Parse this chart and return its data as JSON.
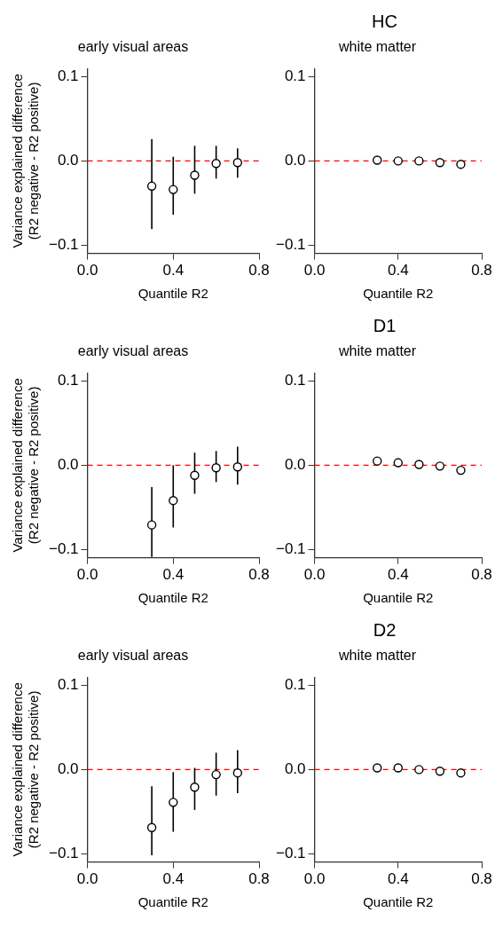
{
  "chart_data": [
    {
      "type": "scatter",
      "subtitle": "early visual areas",
      "xlabel": "Quantile R2",
      "ylabel": "Variance explained difference\n(R2 negative - R2 positive)",
      "xlim": [
        0,
        0.8
      ],
      "ylim": [
        -0.11,
        0.11
      ],
      "xticks": [
        {
          "value": 0,
          "label": "0.0"
        },
        {
          "value": 0.4,
          "label": "0.4"
        },
        {
          "value": 0.8,
          "label": "0.8"
        }
      ],
      "yticks": [
        {
          "value": -0.1,
          "label": "−0.1"
        },
        {
          "value": 0,
          "label": "0.0"
        },
        {
          "value": 0.1,
          "label": "0.1"
        }
      ],
      "grid": false,
      "marker": "circle",
      "ref_lines": [
        {
          "axis": "y",
          "value": 0,
          "color": "#ff0000",
          "line_style": "dashed"
        }
      ],
      "series": [
        {
          "color": "#000000",
          "x": [
            0.3,
            0.4,
            0.5,
            0.6,
            0.7
          ],
          "values": [
            -0.03,
            -0.034,
            -0.017,
            -0.003,
            -0.002
          ],
          "errors": [
            [
              -0.081,
              0.026
            ],
            [
              -0.064,
              0.005
            ],
            [
              -0.039,
              0.018
            ],
            [
              -0.021,
              0.018
            ],
            [
              -0.02,
              0.015
            ]
          ]
        }
      ]
    },
    {
      "type": "scatter",
      "subtitle": "white matter",
      "xlabel": "Quantile R2",
      "xlim": [
        0,
        0.8
      ],
      "ylim": [
        -0.11,
        0.11
      ],
      "xticks": [
        {
          "value": 0,
          "label": "0.0"
        },
        {
          "value": 0.4,
          "label": "0.4"
        },
        {
          "value": 0.8,
          "label": "0.8"
        }
      ],
      "yticks": [
        {
          "value": -0.1,
          "label": "−0.1"
        },
        {
          "value": 0,
          "label": "0.0"
        },
        {
          "value": 0.1,
          "label": "0.1"
        }
      ],
      "grid": false,
      "marker": "circle",
      "ref_lines": [
        {
          "axis": "y",
          "value": 0,
          "color": "#ff0000",
          "line_style": "dashed"
        }
      ],
      "series": [
        {
          "color": "#000000",
          "x": [
            0.3,
            0.4,
            0.5,
            0.6,
            0.7
          ],
          "values": [
            0.001,
            0.0,
            0.0,
            -0.002,
            -0.004
          ]
        }
      ],
      "title": "HC"
    },
    {
      "type": "scatter",
      "subtitle": "early visual areas",
      "xlabel": "Quantile R2",
      "ylabel": "Variance explained difference\n(R2 negative - R2 positive)",
      "xlim": [
        0,
        0.8
      ],
      "ylim": [
        -0.11,
        0.11
      ],
      "xticks": [
        {
          "value": 0,
          "label": "0.0"
        },
        {
          "value": 0.4,
          "label": "0.4"
        },
        {
          "value": 0.8,
          "label": "0.8"
        }
      ],
      "yticks": [
        {
          "value": -0.1,
          "label": "−0.1"
        },
        {
          "value": 0,
          "label": "0.0"
        },
        {
          "value": 0.1,
          "label": "0.1"
        }
      ],
      "grid": false,
      "marker": "circle",
      "ref_lines": [
        {
          "axis": "y",
          "value": 0,
          "color": "#ff0000",
          "line_style": "dashed"
        }
      ],
      "series": [
        {
          "color": "#000000",
          "x": [
            0.3,
            0.4,
            0.5,
            0.6,
            0.7
          ],
          "values": [
            -0.071,
            -0.042,
            -0.012,
            -0.003,
            -0.002
          ],
          "errors": [
            [
              -0.109,
              -0.026
            ],
            [
              -0.074,
              0.0
            ],
            [
              -0.034,
              0.015
            ],
            [
              -0.02,
              0.017
            ],
            [
              -0.023,
              0.022
            ]
          ]
        }
      ]
    },
    {
      "type": "scatter",
      "subtitle": "white matter",
      "xlabel": "Quantile R2",
      "xlim": [
        0,
        0.8
      ],
      "ylim": [
        -0.11,
        0.11
      ],
      "xticks": [
        {
          "value": 0,
          "label": "0.0"
        },
        {
          "value": 0.4,
          "label": "0.4"
        },
        {
          "value": 0.8,
          "label": "0.8"
        }
      ],
      "yticks": [
        {
          "value": -0.1,
          "label": "−0.1"
        },
        {
          "value": 0,
          "label": "0.0"
        },
        {
          "value": 0.1,
          "label": "0.1"
        }
      ],
      "grid": false,
      "marker": "circle",
      "ref_lines": [
        {
          "axis": "y",
          "value": 0,
          "color": "#ff0000",
          "line_style": "dashed"
        }
      ],
      "series": [
        {
          "color": "#000000",
          "x": [
            0.3,
            0.4,
            0.5,
            0.6,
            0.7
          ],
          "values": [
            0.005,
            0.003,
            0.001,
            -0.001,
            -0.006
          ]
        }
      ],
      "title": "D1"
    },
    {
      "type": "scatter",
      "subtitle": "early visual areas",
      "xlabel": "Quantile R2",
      "ylabel": "Variance explained difference\n(R2 negative - R2 positive)",
      "xlim": [
        0,
        0.8
      ],
      "ylim": [
        -0.11,
        0.11
      ],
      "xticks": [
        {
          "value": 0,
          "label": "0.0"
        },
        {
          "value": 0.4,
          "label": "0.4"
        },
        {
          "value": 0.8,
          "label": "0.8"
        }
      ],
      "yticks": [
        {
          "value": -0.1,
          "label": "−0.1"
        },
        {
          "value": 0,
          "label": "0.0"
        },
        {
          "value": 0.1,
          "label": "0.1"
        }
      ],
      "grid": false,
      "marker": "circle",
      "ref_lines": [
        {
          "axis": "y",
          "value": 0,
          "color": "#ff0000",
          "line_style": "dashed"
        }
      ],
      "series": [
        {
          "color": "#000000",
          "x": [
            0.3,
            0.4,
            0.5,
            0.6,
            0.7
          ],
          "values": [
            -0.069,
            -0.039,
            -0.021,
            -0.006,
            -0.004
          ],
          "errors": [
            [
              -0.102,
              -0.02
            ],
            [
              -0.074,
              -0.003
            ],
            [
              -0.048,
              0.002
            ],
            [
              -0.031,
              0.02
            ],
            [
              -0.028,
              0.023
            ]
          ]
        }
      ]
    },
    {
      "type": "scatter",
      "subtitle": "white matter",
      "xlabel": "Quantile R2",
      "xlim": [
        0,
        0.8
      ],
      "ylim": [
        -0.11,
        0.11
      ],
      "xticks": [
        {
          "value": 0,
          "label": "0.0"
        },
        {
          "value": 0.4,
          "label": "0.4"
        },
        {
          "value": 0.8,
          "label": "0.8"
        }
      ],
      "yticks": [
        {
          "value": -0.1,
          "label": "−0.1"
        },
        {
          "value": 0,
          "label": "0.0"
        },
        {
          "value": 0.1,
          "label": "0.1"
        }
      ],
      "grid": false,
      "marker": "circle",
      "ref_lines": [
        {
          "axis": "y",
          "value": 0,
          "color": "#ff0000",
          "line_style": "dashed"
        }
      ],
      "series": [
        {
          "color": "#000000",
          "x": [
            0.3,
            0.4,
            0.5,
            0.6,
            0.7
          ],
          "values": [
            0.002,
            0.002,
            0.0,
            -0.002,
            -0.004
          ]
        }
      ],
      "title": "D2"
    }
  ]
}
